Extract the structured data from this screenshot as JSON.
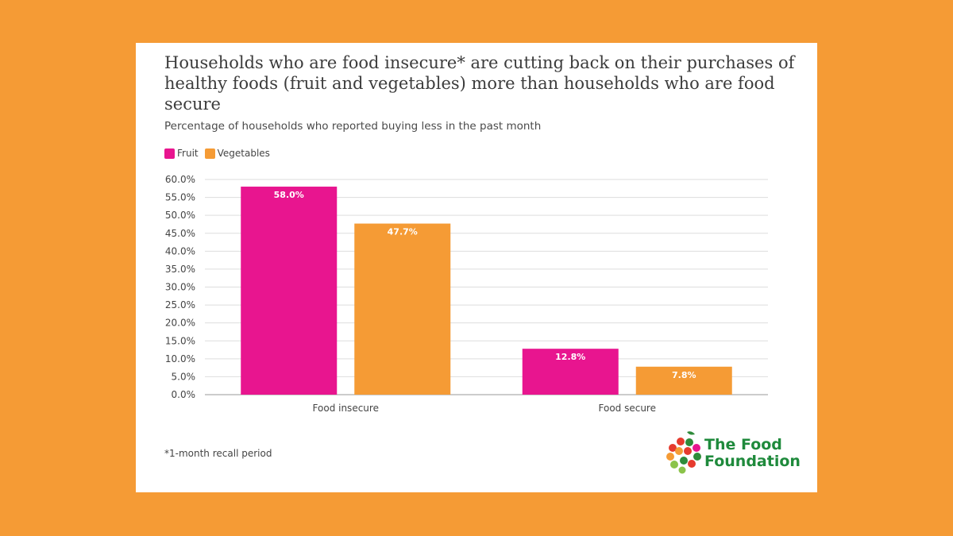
{
  "chart_data": {
    "type": "bar",
    "title": "Households who are food insecure* are cutting back on their purchases of healthy foods (fruit and vegetables) more than households who are food secure",
    "subtitle": "Percentage of households who reported buying less in the past month",
    "categories": [
      "Food insecure",
      "Food secure"
    ],
    "series": [
      {
        "name": "Fruit",
        "values": [
          58.0,
          12.8
        ],
        "labels": [
          "58.0%",
          "12.8%"
        ],
        "color": "#e8158f"
      },
      {
        "name": "Vegetables",
        "values": [
          47.7,
          7.8
        ],
        "labels": [
          "47.7%",
          "7.8%"
        ],
        "color": "#f59b35"
      }
    ],
    "ylim": [
      0,
      60
    ],
    "yticks": [
      "0.0%",
      "5.0%",
      "10.0%",
      "15.0%",
      "20.0%",
      "25.0%",
      "30.0%",
      "35.0%",
      "40.0%",
      "45.0%",
      "50.0%",
      "55.0%",
      "60.0%"
    ],
    "grid": true,
    "legend_position": "top-left",
    "footnote": "*1-month recall period"
  },
  "logo": {
    "line1": "The Food",
    "line2": "Foundation"
  },
  "colors": {
    "background": "#f59b35",
    "card": "#ffffff",
    "gridline": "#dddddd",
    "logo_green": "#1f8a3c"
  }
}
